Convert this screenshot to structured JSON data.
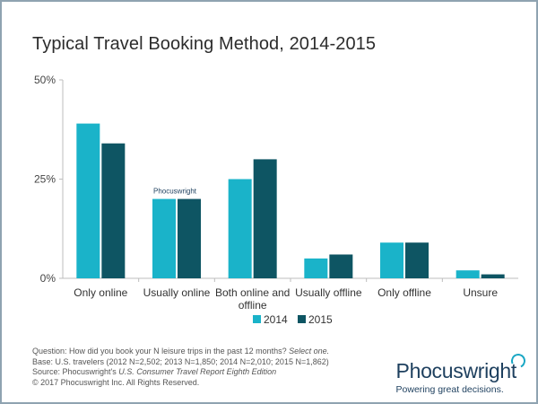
{
  "title": "Typical Travel Booking Method, 2014-2015",
  "chart_data": {
    "type": "bar",
    "categories": [
      "Only online",
      "Usually online",
      "Both online and offline",
      "Usually offline",
      "Only offline",
      "Unsure"
    ],
    "category_lines": [
      [
        "Only online"
      ],
      [
        "Usually online"
      ],
      [
        "Both online and",
        "offline"
      ],
      [
        "Usually offline"
      ],
      [
        "Only offline"
      ],
      [
        "Unsure"
      ]
    ],
    "series": [
      {
        "name": "2014",
        "color": "#1ab3c9",
        "values": [
          39,
          20,
          25,
          5,
          9,
          2
        ]
      },
      {
        "name": "2015",
        "color": "#0e5563",
        "values": [
          34,
          20,
          30,
          6,
          9,
          1
        ]
      }
    ],
    "ylim": [
      0,
      50
    ],
    "yticks": [
      0,
      25,
      50
    ],
    "ytick_labels": [
      "0%",
      "25%",
      "50%"
    ],
    "legend_position": "bottom-center",
    "grid": false
  },
  "watermark": "Phocuswright",
  "footer": {
    "question": "Question: How did you book your N leisure trips in the past 12 months? ",
    "question_italic": "Select one.",
    "base": "Base: U.S. travelers (2012 N=2,502; 2013 N=1,850; 2014 N=2,010; 2015 N=1,862)",
    "source": "Source: Phocuswright's ",
    "source_italic": "U.S. Consumer Travel Report Eighth Edition",
    "copyright": "© 2017 Phocuswright Inc. All Rights Reserved."
  },
  "brand": {
    "name": "Phocuswright",
    "tagline": "Powering great decisions."
  }
}
